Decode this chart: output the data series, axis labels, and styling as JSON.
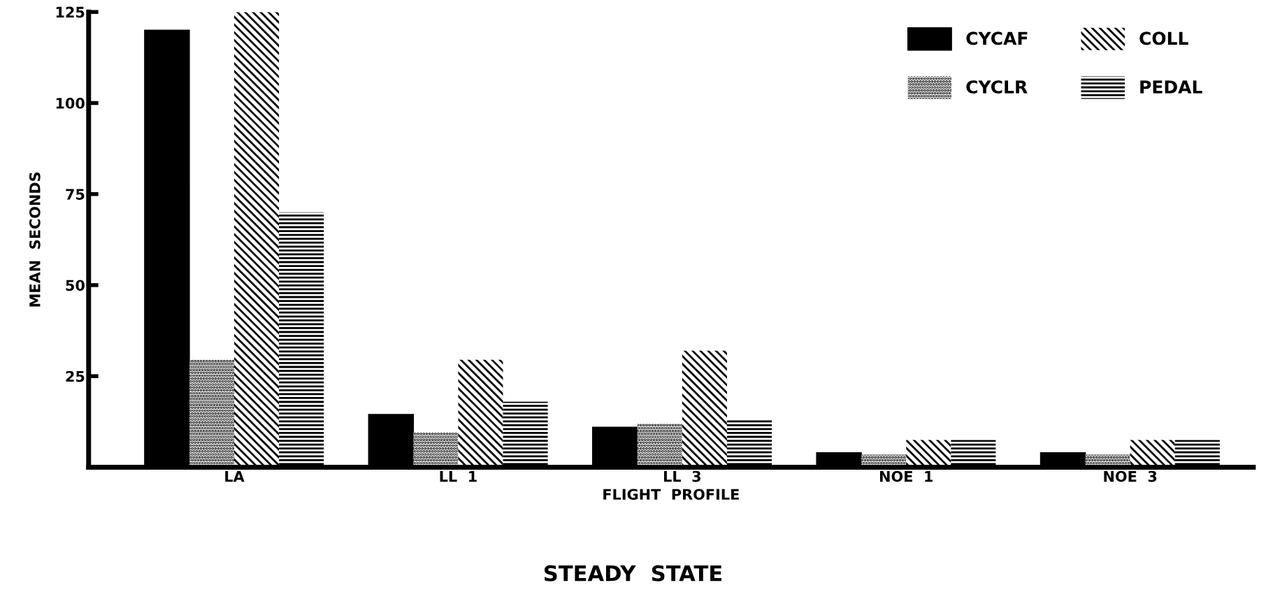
{
  "chart_data": {
    "type": "bar",
    "title": "STEADY  STATE",
    "xlabel": "FLIGHT  PROFILE",
    "ylabel": "MEAN  SECONDS",
    "categories": [
      "LA",
      "LL  1",
      "LL  3",
      "NOE  1",
      "NOE  3"
    ],
    "series": [
      {
        "name": "CYCAF",
        "color": "#000000",
        "values": [
          120,
          14.5,
          11,
          4,
          4
        ]
      },
      {
        "name": "CYCLR",
        "color": "#000000",
        "values": [
          29.5,
          9.5,
          12,
          3.5,
          3.5
        ]
      },
      {
        "name": "COLL",
        "color": "#000000",
        "values": [
          125,
          29.5,
          32,
          7.5,
          7.5
        ]
      },
      {
        "name": "PEDAL",
        "color": "#000000",
        "values": [
          70,
          18,
          13,
          7.5,
          7.5
        ]
      }
    ],
    "ylim": [
      0,
      125
    ],
    "yticks": [
      25,
      50,
      75,
      100,
      125
    ],
    "grid": false,
    "legend": "top right"
  }
}
